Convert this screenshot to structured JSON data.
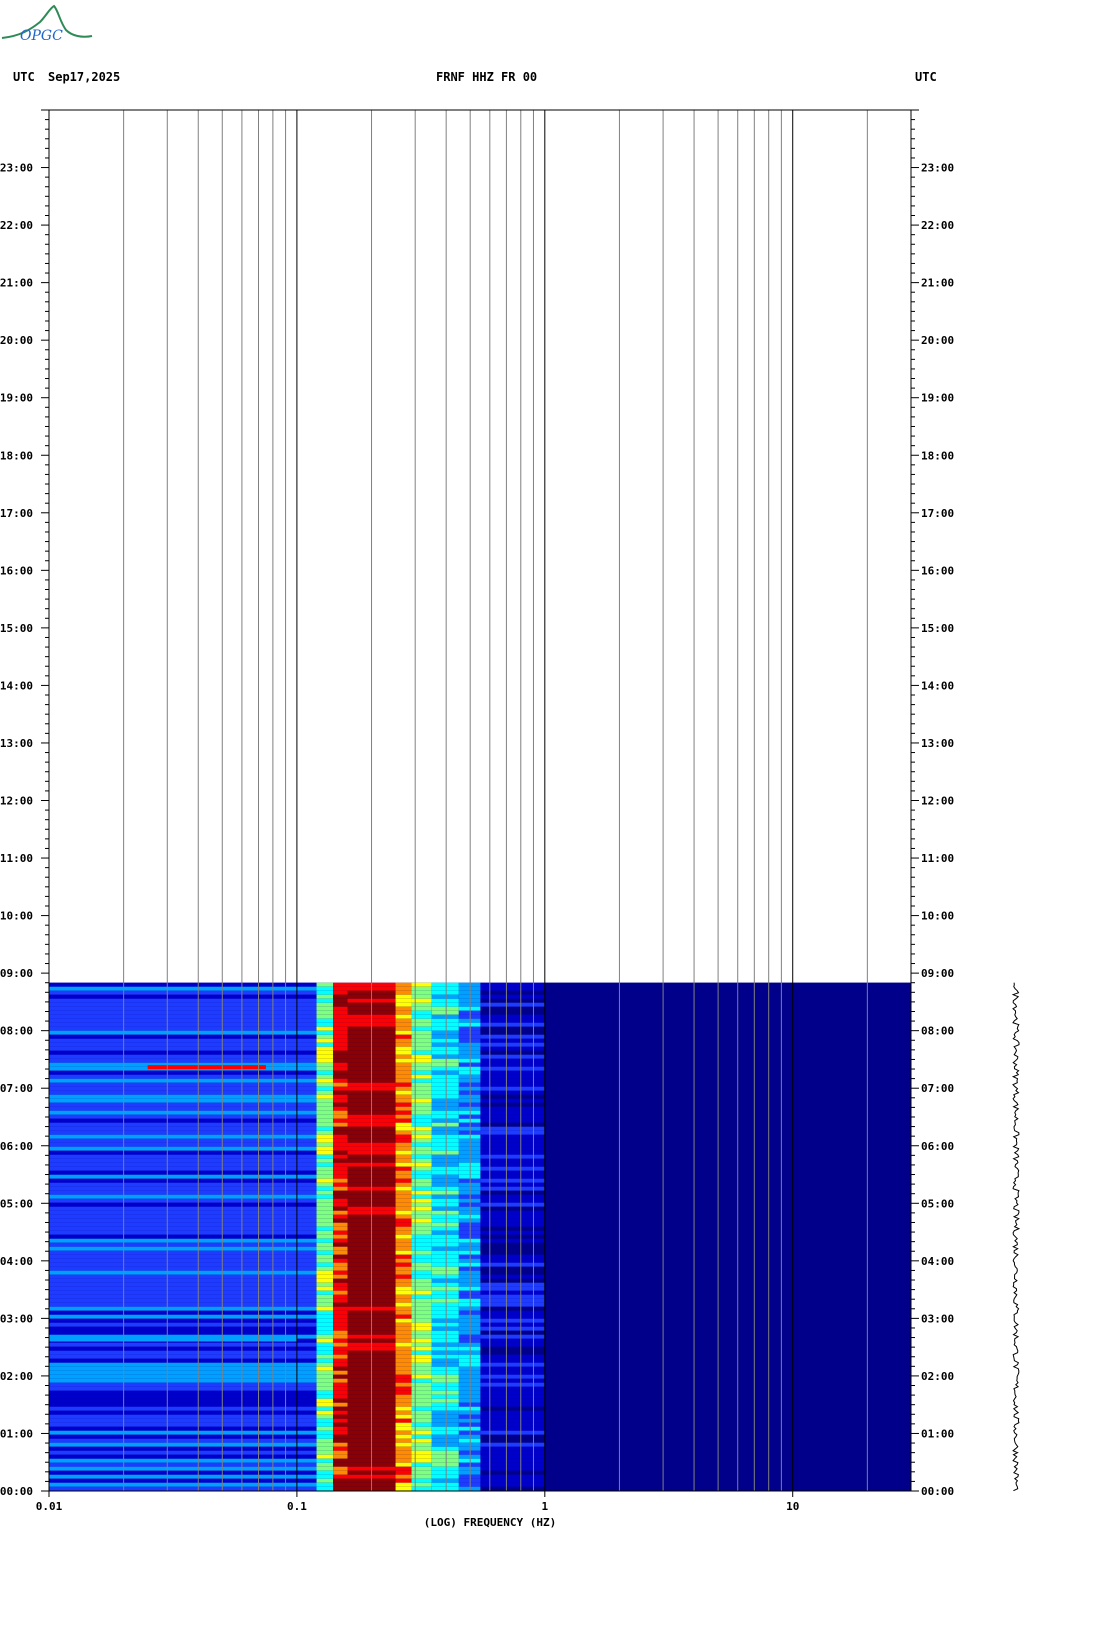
{
  "header": {
    "left_tz": "UTC",
    "date": "Sep17,2025",
    "station": "FRNF HHZ FR 00",
    "right_tz": "UTC"
  },
  "logo": {
    "text": "OPGC",
    "color": "#2e8b57",
    "accent": "#1e64c8"
  },
  "chart_data": {
    "type": "heatmap",
    "title": "FRNF HHZ FR 00",
    "xlabel": "(LOG) FREQUENCY (HZ)",
    "ylabel": "",
    "x_scale": "log",
    "xlim": [
      0.01,
      30
    ],
    "ylim_hours": [
      0,
      24
    ],
    "x_tick_labels": [
      {
        "value": 0.01,
        "label": "0.01"
      },
      {
        "value": 0.1,
        "label": "0.1"
      },
      {
        "value": 1,
        "label": "1"
      },
      {
        "value": 10,
        "label": "10"
      }
    ],
    "minor_gridlines": [
      0.02,
      0.03,
      0.04,
      0.05,
      0.06,
      0.07,
      0.08,
      0.09,
      0.2,
      0.3,
      0.4,
      0.5,
      0.6,
      0.7,
      0.8,
      0.9,
      2,
      3,
      4,
      5,
      6,
      7,
      8,
      9,
      20
    ],
    "y_tick_labels": [
      "00:00",
      "01:00",
      "02:00",
      "03:00",
      "04:00",
      "05:00",
      "06:00",
      "07:00",
      "08:00",
      "09:00",
      "10:00",
      "11:00",
      "12:00",
      "13:00",
      "14:00",
      "15:00",
      "16:00",
      "17:00",
      "18:00",
      "19:00",
      "20:00",
      "21:00",
      "22:00",
      "23:00"
    ],
    "data_end_time": "08:50",
    "colormap": [
      "#00008b",
      "#0000cd",
      "#1e3cff",
      "#00a0ff",
      "#00ffff",
      "#7fff7f",
      "#ffff00",
      "#ff8c00",
      "#ff0000",
      "#8b0000"
    ],
    "spectral_bands": [
      {
        "f_min": 0.01,
        "f_max": 0.12,
        "level": 2
      },
      {
        "f_min": 0.12,
        "f_max": 0.14,
        "level": 5
      },
      {
        "f_min": 0.14,
        "f_max": 0.16,
        "level": 8
      },
      {
        "f_min": 0.16,
        "f_max": 0.25,
        "level": 9
      },
      {
        "f_min": 0.25,
        "f_max": 0.29,
        "level": 7
      },
      {
        "f_min": 0.29,
        "f_max": 0.35,
        "level": 5
      },
      {
        "f_min": 0.35,
        "f_max": 0.45,
        "level": 4
      },
      {
        "f_min": 0.45,
        "f_max": 0.55,
        "level": 3
      },
      {
        "f_min": 0.55,
        "f_max": 1.0,
        "level": 1
      },
      {
        "f_min": 1.0,
        "f_max": 30,
        "level": 0
      }
    ],
    "events": [
      {
        "time": "07:22",
        "f_min": 0.025,
        "f_max": 0.075,
        "level": 8
      },
      {
        "time": "02:38",
        "f_min": 0.01,
        "f_max": 0.1,
        "level": 3
      }
    ]
  }
}
